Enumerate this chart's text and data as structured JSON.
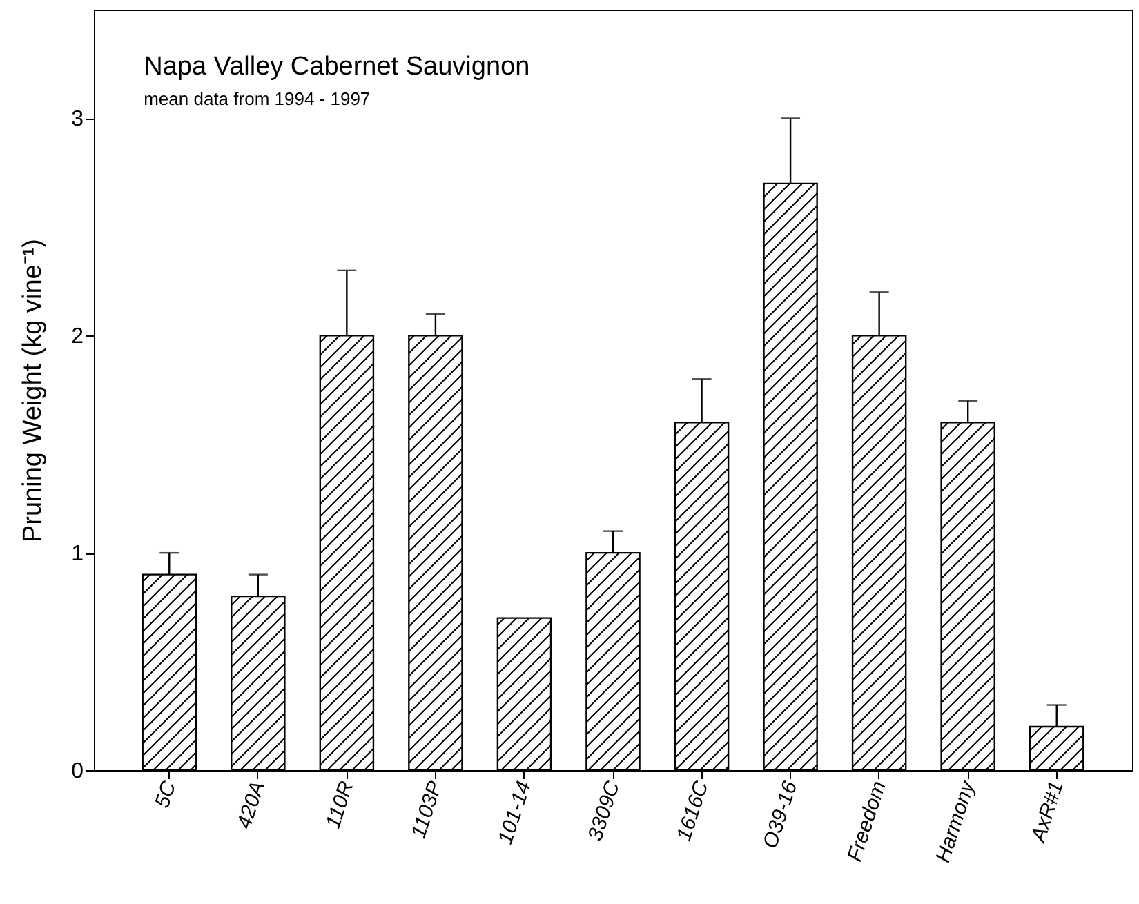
{
  "chart_data": {
    "type": "bar",
    "title": "Napa Valley Cabernet Sauvignon",
    "subtitle": "mean data from 1994 - 1997",
    "ylabel": "Pruning Weight (kg vine⁻¹)",
    "categories": [
      "5C",
      "420A",
      "110R",
      "1103P",
      "101-14",
      "3309C",
      "1616C",
      "O39-16",
      "Freedom",
      "Harmony",
      "AxR#1"
    ],
    "values": [
      0.9,
      0.8,
      2.0,
      2.0,
      0.7,
      1.0,
      1.6,
      2.7,
      2.0,
      1.6,
      0.2
    ],
    "errors": [
      [
        0.9,
        1.0
      ],
      [
        0.8,
        0.9
      ],
      [
        2.0,
        2.3
      ],
      [
        2.0,
        2.1
      ],
      null,
      [
        1.0,
        1.1
      ],
      [
        1.6,
        1.8
      ],
      [
        2.7,
        3.0
      ],
      [
        2.0,
        2.2
      ],
      [
        1.6,
        1.7
      ],
      [
        0.2,
        0.3
      ]
    ],
    "color": "#000000",
    "ylim": [
      0,
      3.5
    ],
    "yticks": [
      0,
      1,
      2,
      3
    ],
    "grid": false
  }
}
